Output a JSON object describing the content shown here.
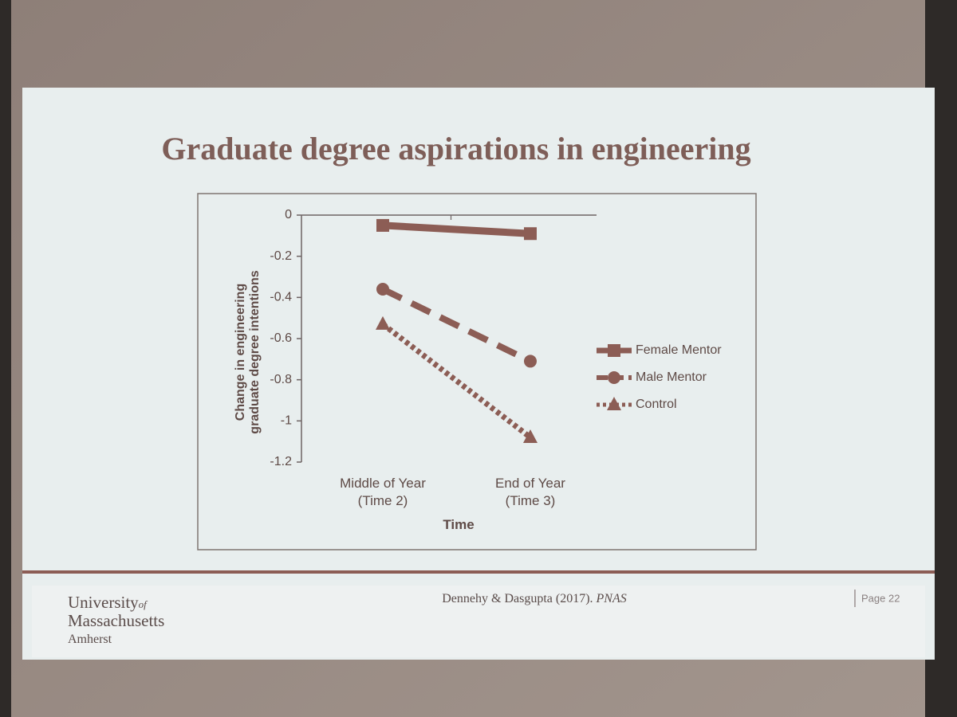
{
  "chart_data": {
    "type": "line",
    "title": "Graduate degree aspirations in engineering",
    "x_label": "Time",
    "y_label": "Change in engineering\ngraduate degree intentions",
    "categories": [
      "Middle of Year\n(Time 2)",
      "End of Year\n(Time 3)"
    ],
    "series": [
      {
        "name": "Female Mentor",
        "color": "#8c5d55",
        "line_style": "solid",
        "marker": "square",
        "values": [
          -0.05,
          -0.09
        ]
      },
      {
        "name": "Male Mentor",
        "color": "#8c5d55",
        "line_style": "dashed",
        "marker": "circle",
        "values": [
          -0.36,
          -0.71
        ]
      },
      {
        "name": "Control",
        "color": "#8c5d55",
        "line_style": "dotted",
        "marker": "triangle",
        "values": [
          -0.53,
          -1.08
        ]
      }
    ],
    "ylim": [
      -1.2,
      0
    ],
    "yticks": [
      0,
      -0.2,
      -0.4,
      -0.6,
      -0.8,
      -1,
      -1.2
    ],
    "grid": false,
    "legend": "right"
  },
  "footer": {
    "logo": [
      "University",
      "of",
      "Massachusetts",
      "Amherst"
    ],
    "citation": [
      "Dennehy & Dasgupta (2017). ",
      "PNAS"
    ],
    "page": "Page 22"
  }
}
